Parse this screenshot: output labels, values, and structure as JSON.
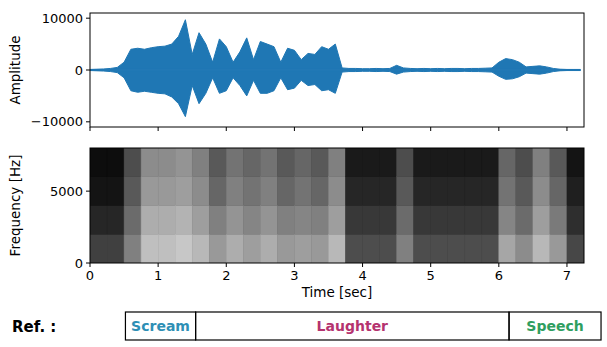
{
  "chart_data": [
    {
      "type": "area",
      "ylabel": "Amplitude",
      "x": [
        0,
        0.1,
        0.2,
        0.3,
        0.4,
        0.5,
        0.6,
        0.7,
        0.8,
        0.9,
        1.0,
        1.1,
        1.2,
        1.3,
        1.4,
        1.5,
        1.6,
        1.7,
        1.8,
        1.9,
        2.0,
        2.1,
        2.2,
        2.3,
        2.4,
        2.5,
        2.6,
        2.7,
        2.8,
        2.9,
        3.0,
        3.1,
        3.2,
        3.3,
        3.4,
        3.5,
        3.6,
        3.7,
        3.8,
        3.9,
        4.0,
        4.1,
        4.2,
        4.3,
        4.4,
        4.5,
        4.6,
        4.7,
        4.8,
        4.9,
        5.0,
        5.1,
        5.2,
        5.3,
        5.4,
        5.5,
        5.6,
        5.7,
        5.8,
        5.9,
        6.0,
        6.1,
        6.2,
        6.3,
        6.4,
        6.5,
        6.6,
        6.7,
        6.8,
        6.9,
        7.0,
        7.1,
        7.2
      ],
      "series": [
        {
          "color": "#1f77b4",
          "values": [
            100,
            150,
            200,
            300,
            500,
            1500,
            4000,
            4200,
            4000,
            4300,
            4500,
            4600,
            5000,
            6500,
            9700,
            3000,
            7200,
            5000,
            1500,
            6000,
            4500,
            1500,
            3500,
            6200,
            2000,
            5500,
            5000,
            4500,
            1500,
            4200,
            3800,
            2000,
            3200,
            3000,
            4500,
            4000,
            5000,
            400,
            300,
            300,
            250,
            250,
            300,
            250,
            300,
            900,
            400,
            300,
            250,
            300,
            250,
            300,
            250,
            300,
            300,
            250,
            300,
            300,
            350,
            400,
            1500,
            2200,
            2000,
            1500,
            600,
            700,
            800,
            600,
            300,
            150,
            100,
            100,
            100
          ]
        },
        {
          "color": "#1f77b4",
          "values": [
            -100,
            -150,
            -200,
            -300,
            -500,
            -1500,
            -4000,
            -4300,
            -4100,
            -4300,
            -4500,
            -4600,
            -5200,
            -6500,
            -9000,
            -3000,
            -6500,
            -4500,
            -1500,
            -4500,
            -4000,
            -1500,
            -3000,
            -5000,
            -2000,
            -4500,
            -4500,
            -4000,
            -1500,
            -3800,
            -3500,
            -2000,
            -3000,
            -2800,
            -4000,
            -3800,
            -4500,
            -400,
            -300,
            -300,
            -250,
            -250,
            -300,
            -250,
            -300,
            -800,
            -400,
            -300,
            -250,
            -300,
            -250,
            -300,
            -250,
            -300,
            -300,
            -250,
            -300,
            -300,
            -350,
            -400,
            -1200,
            -1800,
            -1700,
            -1300,
            -600,
            -700,
            -800,
            -600,
            -300,
            -150,
            -100,
            -100,
            -100
          ]
        }
      ],
      "xlim": [
        0,
        7.25
      ],
      "ylim": [
        -11000,
        11000
      ],
      "xticks": [
        0,
        1,
        2,
        3,
        4,
        5,
        6,
        7
      ],
      "yticks": [
        {
          "value": -10000,
          "label": "−10000"
        },
        0,
        10000
      ],
      "tick_labels": "y"
    },
    {
      "type": "heatmap",
      "ylabel": "Frequency [Hz]",
      "xlabel": "Time [sec]",
      "x_bins": [
        0,
        0.25,
        0.5,
        0.75,
        1.0,
        1.25,
        1.5,
        1.75,
        2.0,
        2.25,
        2.5,
        2.75,
        3.0,
        3.25,
        3.5,
        3.75,
        4.0,
        4.25,
        4.5,
        4.75,
        5.0,
        5.25,
        5.5,
        5.75,
        6.0,
        6.25,
        6.5,
        6.75,
        7.0,
        7.25
      ],
      "y_bins": [
        0,
        2000,
        4000,
        6000,
        8000
      ],
      "cells": [
        [
          0.25,
          0.25,
          0.5,
          0.75,
          0.75,
          0.78,
          0.72,
          0.6,
          0.68,
          0.62,
          0.68,
          0.6,
          0.62,
          0.6,
          0.72,
          0.3,
          0.3,
          0.3,
          0.5,
          0.3,
          0.3,
          0.3,
          0.3,
          0.3,
          0.65,
          0.55,
          0.72,
          0.6,
          0.28
        ],
        [
          0.15,
          0.15,
          0.42,
          0.68,
          0.68,
          0.7,
          0.62,
          0.5,
          0.58,
          0.52,
          0.58,
          0.5,
          0.52,
          0.5,
          0.62,
          0.22,
          0.22,
          0.22,
          0.42,
          0.22,
          0.22,
          0.22,
          0.22,
          0.22,
          0.52,
          0.42,
          0.62,
          0.48,
          0.18
        ],
        [
          0.08,
          0.08,
          0.35,
          0.6,
          0.6,
          0.62,
          0.55,
          0.4,
          0.5,
          0.45,
          0.5,
          0.4,
          0.45,
          0.4,
          0.55,
          0.15,
          0.15,
          0.15,
          0.35,
          0.15,
          0.15,
          0.15,
          0.15,
          0.15,
          0.45,
          0.35,
          0.55,
          0.4,
          0.12
        ],
        [
          0.05,
          0.05,
          0.3,
          0.55,
          0.55,
          0.58,
          0.5,
          0.35,
          0.45,
          0.4,
          0.45,
          0.35,
          0.4,
          0.35,
          0.5,
          0.1,
          0.1,
          0.1,
          0.3,
          0.1,
          0.1,
          0.1,
          0.1,
          0.1,
          0.4,
          0.3,
          0.5,
          0.35,
          0.08
        ]
      ],
      "xlim": [
        0,
        7.25
      ],
      "ylim": [
        0,
        8000
      ],
      "xticks": [
        0,
        1,
        2,
        3,
        4,
        5,
        6,
        7
      ],
      "yticks": [
        0,
        5000
      ]
    },
    {
      "type": "timeline",
      "title": "Ref. :",
      "segments": [
        {
          "label": "Scream",
          "start": 0.52,
          "end": 1.55,
          "color": "#2e8fb5"
        },
        {
          "label": "Laughter",
          "start": 1.55,
          "end": 6.15,
          "color": "#b5336f"
        },
        {
          "label": "Speech",
          "start": 6.15,
          "end": 7.5,
          "color": "#2f9e5f"
        }
      ]
    }
  ]
}
